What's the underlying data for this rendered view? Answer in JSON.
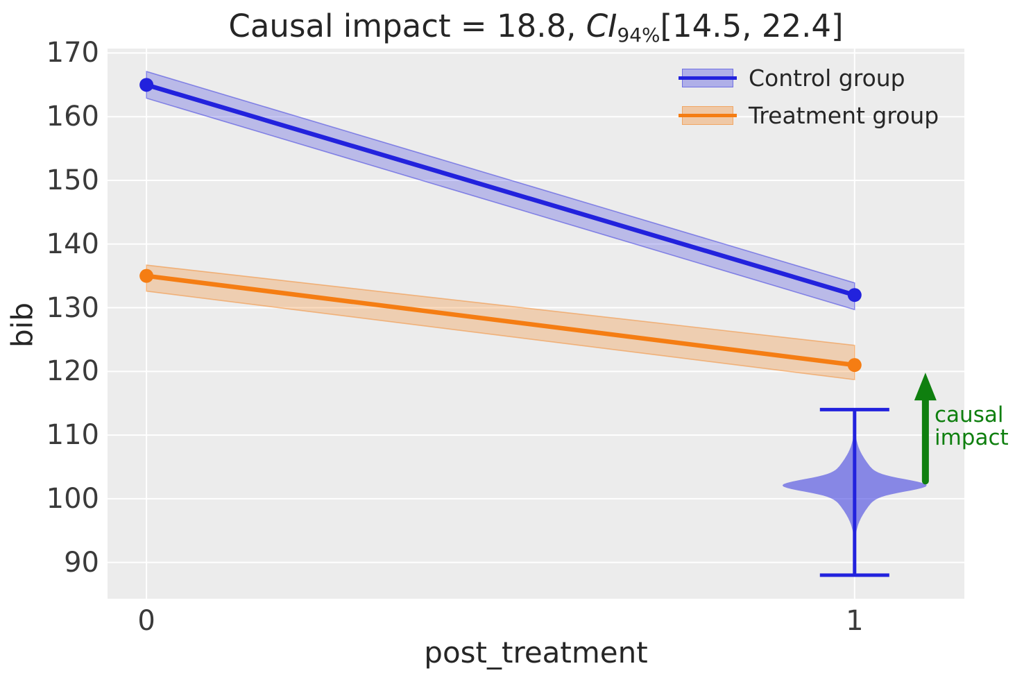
{
  "figure": {
    "background": "#ffffff",
    "plot_background": "#ececec",
    "grid_color": "#ffffff",
    "text_color": "#262626"
  },
  "title": {
    "prefix": "Causal impact = 18.8, ",
    "ci_italic": "CI",
    "ci_subscript": "94%",
    "suffix": "[14.5, 22.4]"
  },
  "annotation": {
    "text": "causal\nimpact",
    "color": "#0f7f0f"
  },
  "chart_data": {
    "type": "line",
    "title": "Causal impact = 18.8, CI_94% [14.5, 22.4]",
    "causal_impact": 18.8,
    "ci_level": "94%",
    "ci_interval": [
      14.5,
      22.4
    ],
    "xlabel": "post_treatment",
    "ylabel": "bib",
    "x": [
      0,
      1
    ],
    "x_ticks": [
      0,
      1
    ],
    "y_ticks": [
      90,
      100,
      110,
      120,
      130,
      140,
      150,
      160,
      170
    ],
    "xlim": [
      -0.055,
      1.155
    ],
    "ylim": [
      84.3,
      170.7
    ],
    "grid": true,
    "legend_position": "upper right",
    "series": [
      {
        "name": "Control group",
        "color": "#2222dd",
        "band_alpha": 0.25,
        "x": [
          0,
          1
        ],
        "values": [
          165,
          132
        ],
        "ci_lower": [
          162.9,
          129.7
        ],
        "ci_upper": [
          167.1,
          133.9
        ]
      },
      {
        "name": "Treatment group",
        "color": "#f57d13",
        "band_alpha": 0.27,
        "x": [
          0,
          1
        ],
        "values": [
          135,
          121
        ],
        "ci_lower": [
          132.6,
          118.7
        ],
        "ci_upper": [
          136.7,
          124.1
        ]
      }
    ],
    "counterfactual_violin": {
      "x": 1,
      "color": "#2222dd",
      "fill_alpha": 0.5,
      "mean": 102.1,
      "whisker_low": 88,
      "whisker_high": 114,
      "cap_halfwidth": 0.049,
      "profile_components": [
        {
          "amp": 0.0686,
          "sigma": 1.3
        },
        {
          "amp": 0.0333,
          "sigma": 4.5
        }
      ]
    },
    "impact_arrow": {
      "x": 1.1,
      "y_from": 102.8,
      "y_to": 119.8,
      "color": "#0f7f0f",
      "label": "causal impact"
    }
  }
}
